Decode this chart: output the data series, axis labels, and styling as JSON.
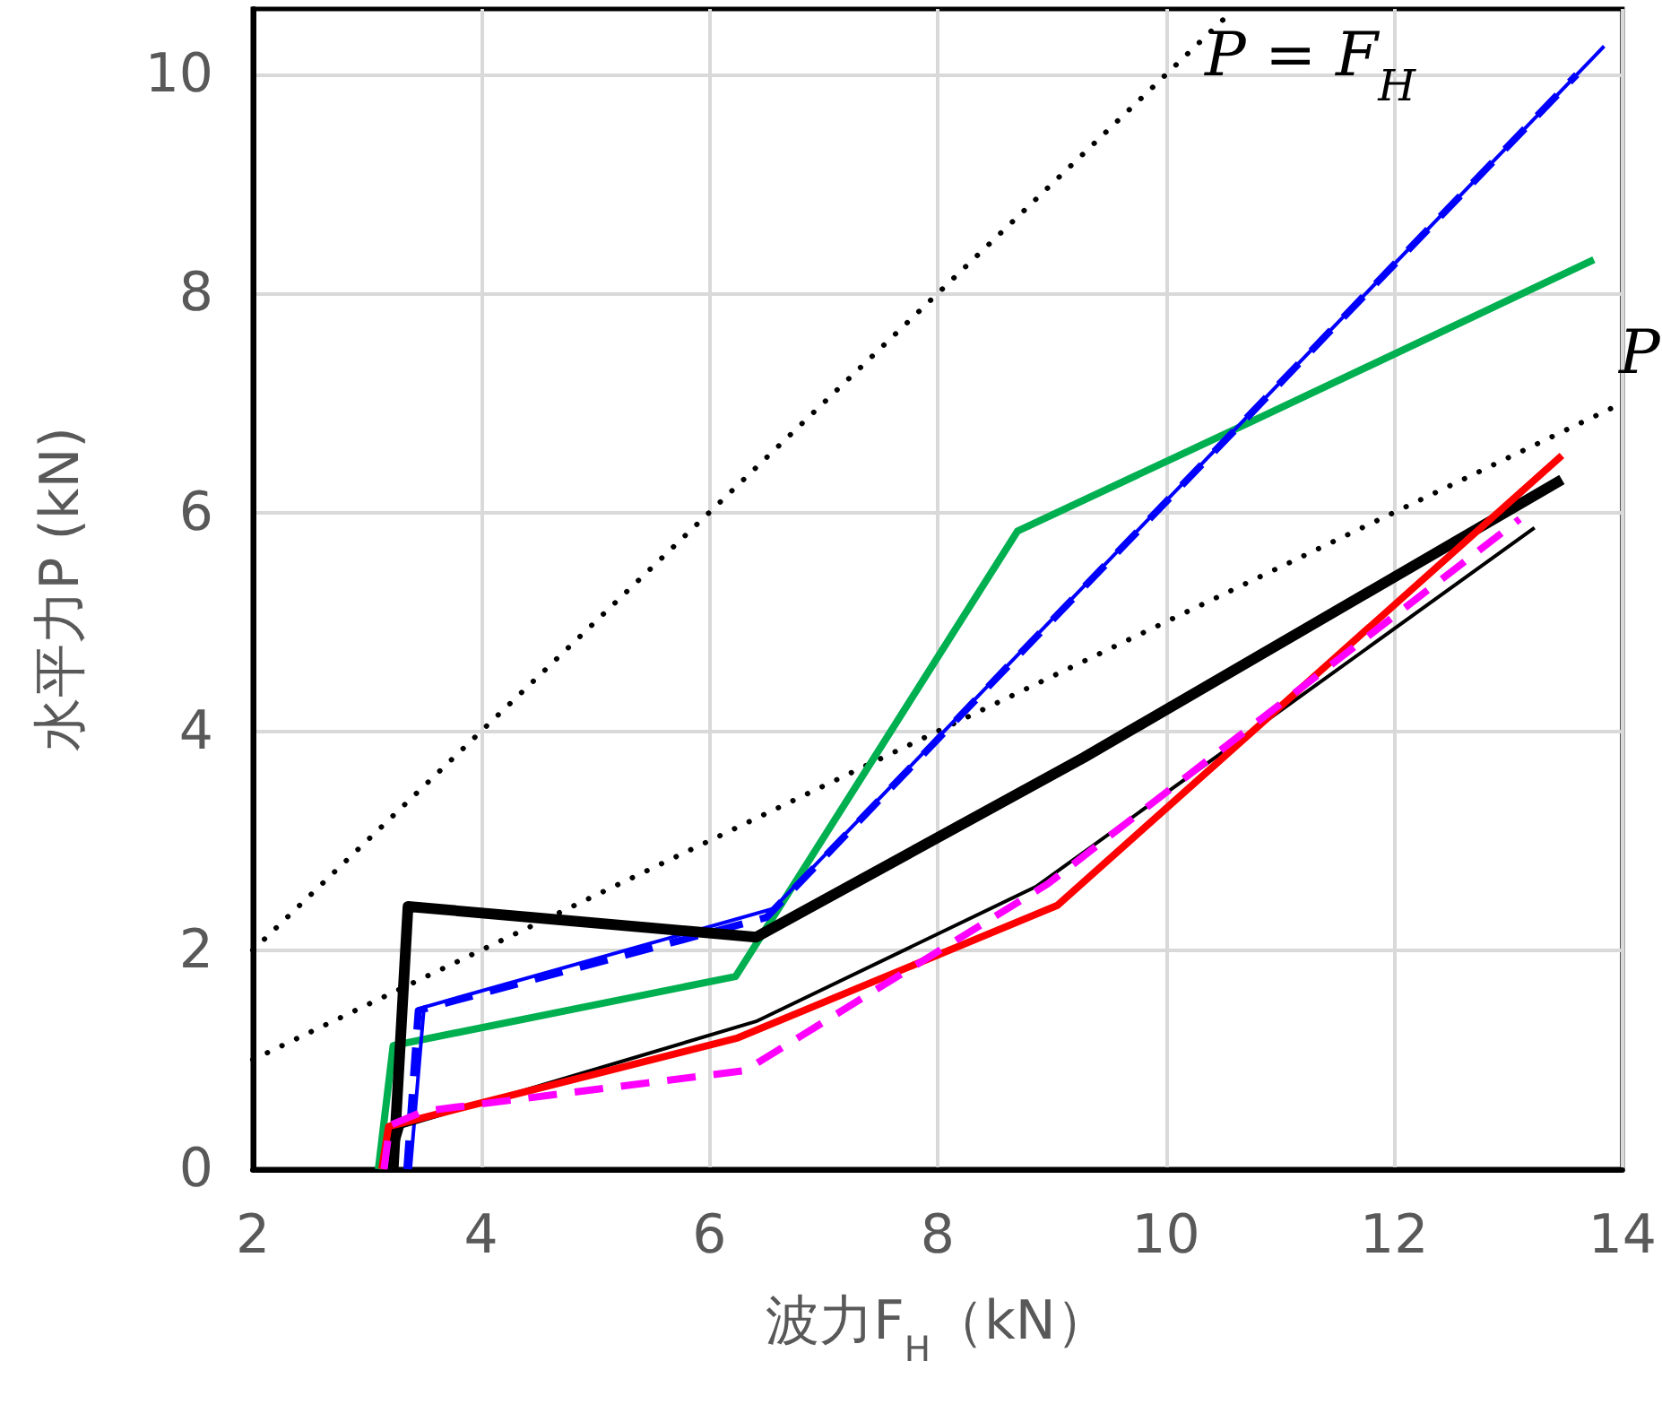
{
  "chart_data": {
    "type": "line",
    "xlabel": "波力F$_{H}$（kN）",
    "ylabel": "水平力P (kN)",
    "xlim": [
      2,
      14
    ],
    "xticks": [
      2,
      4,
      6,
      8,
      10,
      12,
      14
    ],
    "ylim": [
      0,
      10.6
    ],
    "yticks": [
      0,
      2,
      4,
      6,
      8,
      10
    ],
    "grid": true,
    "marker": "none",
    "annotations": [
      "P = F$_{H}$",
      "P"
    ],
    "series": [
      {
        "color": "#000000",
        "line_style": "dotted",
        "x": [
          2,
          10.6
        ],
        "values": [
          2,
          10.6
        ]
      },
      {
        "color": "#000000",
        "line_style": "dotted",
        "x": [
          2,
          14
        ],
        "values": [
          1,
          7
        ]
      },
      {
        "color": "#00b050",
        "line_style": "solid",
        "x": [
          3.1,
          3.23,
          6.23,
          8.7,
          10.73,
          13.75
        ],
        "values": [
          0,
          1.13,
          1.76,
          5.83,
          6.82,
          8.31
        ]
      },
      {
        "color": "#0000ff",
        "line_style": "solid",
        "x": [
          3.38,
          3.5,
          6.56,
          13.84
        ],
        "values": [
          0,
          1.48,
          2.38,
          10.26
        ]
      },
      {
        "color": "#0000ff",
        "line_style": "dashed",
        "x": [
          3.35,
          3.45,
          6.5,
          13.6
        ],
        "values": [
          0,
          1.45,
          2.3,
          10.0
        ]
      },
      {
        "color": "#000000",
        "line_style": "solid",
        "x": [
          3.23,
          3.36,
          6.41,
          9.28,
          13.47
        ],
        "values": [
          0,
          2.4,
          2.12,
          3.76,
          6.3
        ]
      },
      {
        "color": "#000000",
        "line_style": "solid",
        "x": [
          3.2,
          3.31,
          6.41,
          8.86,
          13.23
        ],
        "values": [
          0,
          0.39,
          1.35,
          2.58,
          5.86
        ]
      },
      {
        "color": "#ff0000",
        "line_style": "solid",
        "x": [
          3.13,
          3.19,
          6.25,
          9.05,
          13.47
        ],
        "values": [
          0,
          0.39,
          1.2,
          2.41,
          6.52
        ]
      },
      {
        "color": "#ff00ff",
        "line_style": "dashed",
        "x": [
          3.15,
          3.2,
          3.5,
          6.31,
          8.97,
          13.1
        ],
        "values": [
          0,
          0.4,
          0.53,
          0.9,
          2.61,
          5.94
        ]
      }
    ]
  }
}
